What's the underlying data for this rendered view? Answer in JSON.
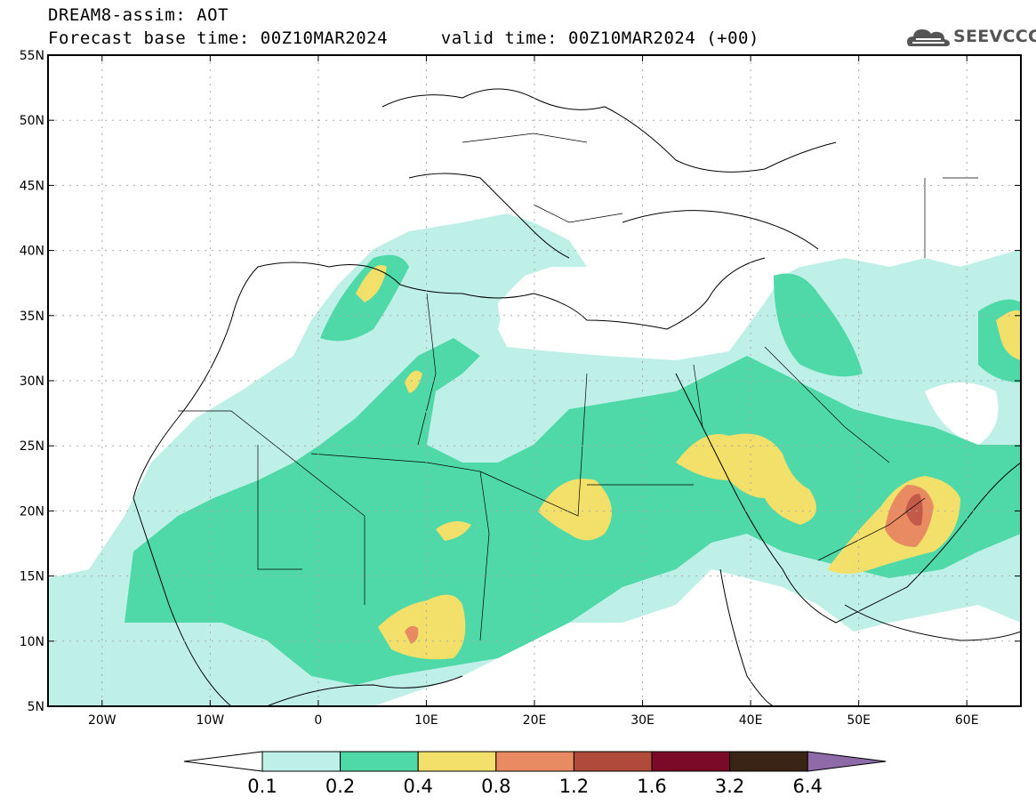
{
  "header": {
    "title": "DREAM8-assim: AOT",
    "forecast_base": "Forecast base time: 00Z10MAR2024",
    "valid_time": "valid time: 00Z10MAR2024 (+00)",
    "logo_text": "SEEVCCC"
  },
  "map": {
    "lon_range": [
      -25,
      65
    ],
    "lat_range": [
      5,
      55
    ],
    "lon_ticks": [
      {
        "value": -20,
        "label": "20W"
      },
      {
        "value": -10,
        "label": "10W"
      },
      {
        "value": 0,
        "label": "0"
      },
      {
        "value": 10,
        "label": "10E"
      },
      {
        "value": 20,
        "label": "20E"
      },
      {
        "value": 30,
        "label": "30E"
      },
      {
        "value": 40,
        "label": "40E"
      },
      {
        "value": 50,
        "label": "50E"
      },
      {
        "value": 60,
        "label": "60E"
      }
    ],
    "lat_ticks": [
      {
        "value": 55,
        "label": "55N"
      },
      {
        "value": 50,
        "label": "50N"
      },
      {
        "value": 45,
        "label": "45N"
      },
      {
        "value": 40,
        "label": "40N"
      },
      {
        "value": 35,
        "label": "35N"
      },
      {
        "value": 30,
        "label": "30N"
      },
      {
        "value": 25,
        "label": "25N"
      },
      {
        "value": 20,
        "label": "20N"
      },
      {
        "value": 15,
        "label": "15N"
      },
      {
        "value": 10,
        "label": "10N"
      },
      {
        "value": 5,
        "label": "5N"
      }
    ],
    "grid": "dotted"
  },
  "colorbar": {
    "levels": [
      "0.1",
      "0.2",
      "0.4",
      "0.8",
      "1.2",
      "1.6",
      "3.2",
      "6.4"
    ],
    "colors": [
      "#bff0e8",
      "#4fd8a8",
      "#f2e06a",
      "#e88a62",
      "#b04a3a",
      "#7a0a28",
      "#3a2416",
      "#8f6aa8"
    ],
    "under_color": "#ffffff"
  },
  "colors": {
    "c1": "#bff0e8",
    "c2": "#4fd8a8",
    "c3": "#f2e06a",
    "c4": "#e88a62",
    "c5": "#b04a3a"
  }
}
